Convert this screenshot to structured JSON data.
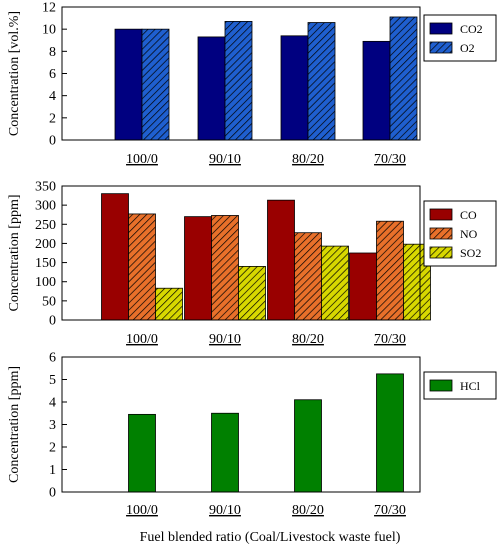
{
  "figure": {
    "xlabel": "Fuel blended ratio (Coal/Livestock waste fuel)"
  },
  "chart_data": [
    {
      "type": "bar",
      "categories": [
        "100/0",
        "90/10",
        "80/20",
        "70/30"
      ],
      "ylabel": "Concentration [vol.%]",
      "ylim": [
        0,
        12
      ],
      "yticks": [
        0,
        2,
        4,
        6,
        8,
        10,
        12
      ],
      "legend_position": "top-right",
      "series": [
        {
          "name": "CO2",
          "values": [
            10.0,
            9.3,
            9.4,
            8.9
          ],
          "color": "#000080",
          "pattern": "solid"
        },
        {
          "name": "O2",
          "values": [
            10.0,
            10.7,
            10.6,
            11.1
          ],
          "color": "#1f5fcf",
          "pattern": "hatch"
        }
      ]
    },
    {
      "type": "bar",
      "categories": [
        "100/0",
        "90/10",
        "80/20",
        "70/30"
      ],
      "ylabel": "Concentration [ppm]",
      "ylim": [
        0,
        350
      ],
      "yticks": [
        0,
        50,
        100,
        150,
        200,
        250,
        300,
        350
      ],
      "legend_position": "top-right",
      "series": [
        {
          "name": "CO",
          "values": [
            330,
            270,
            313,
            175
          ],
          "color": "#990000",
          "pattern": "solid"
        },
        {
          "name": "NO",
          "values": [
            277,
            273,
            228,
            258
          ],
          "color": "#e8702a",
          "pattern": "hatch"
        },
        {
          "name": "SO2",
          "values": [
            83,
            140,
            193,
            198
          ],
          "color": "#d8d800",
          "pattern": "hatch"
        }
      ]
    },
    {
      "type": "bar",
      "categories": [
        "100/0",
        "90/10",
        "80/20",
        "70/30"
      ],
      "ylabel": "Concentration [ppm]",
      "ylim": [
        0,
        6
      ],
      "yticks": [
        0,
        1,
        2,
        3,
        4,
        5,
        6
      ],
      "legend_position": "top-right",
      "series": [
        {
          "name": "HCl",
          "values": [
            3.45,
            3.5,
            4.1,
            5.25
          ],
          "color": "#008000",
          "pattern": "solid"
        }
      ]
    }
  ]
}
